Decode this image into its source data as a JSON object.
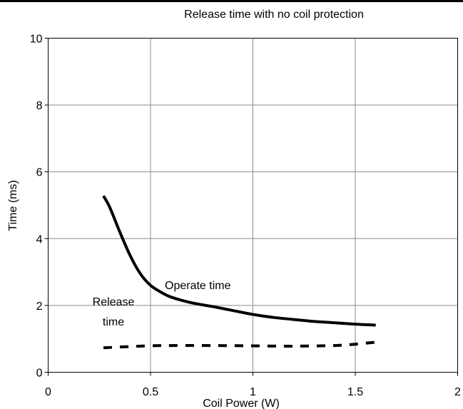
{
  "chart_data": {
    "type": "line",
    "title": "Release time with no coil protection",
    "xlabel": "Coil Power (W)",
    "ylabel": "Time (ms)",
    "xlim": [
      0,
      2
    ],
    "ylim": [
      0,
      10
    ],
    "xticks": [
      0,
      0.5,
      1,
      1.5,
      2
    ],
    "yticks": [
      0,
      2,
      4,
      6,
      8,
      10
    ],
    "xtick_labels": [
      "0",
      "0.5",
      "1",
      "1.5",
      "2"
    ],
    "ytick_labels": [
      "0",
      "2",
      "4",
      "6",
      "8",
      "10"
    ],
    "grid": true,
    "series": [
      {
        "name": "Operate time",
        "style": "solid",
        "color": "#000000",
        "x": [
          0.27,
          0.3,
          0.35,
          0.4,
          0.45,
          0.5,
          0.55,
          0.6,
          0.7,
          0.8,
          0.9,
          1.0,
          1.1,
          1.2,
          1.3,
          1.4,
          1.5,
          1.6
        ],
        "y": [
          5.28,
          4.95,
          4.2,
          3.5,
          2.95,
          2.6,
          2.4,
          2.25,
          2.08,
          1.97,
          1.85,
          1.73,
          1.64,
          1.58,
          1.52,
          1.48,
          1.44,
          1.41
        ]
      },
      {
        "name": "Release time",
        "style": "dashed",
        "color": "#000000",
        "x": [
          0.27,
          0.4,
          0.5,
          0.6,
          0.8,
          1.0,
          1.2,
          1.4,
          1.5,
          1.6
        ],
        "y": [
          0.73,
          0.77,
          0.79,
          0.8,
          0.8,
          0.79,
          0.78,
          0.8,
          0.84,
          0.9
        ]
      }
    ],
    "annotations": [
      {
        "id": "operate",
        "text": "Operate time"
      },
      {
        "id": "release_line1",
        "text": "Release"
      },
      {
        "id": "release_line2",
        "text": "time"
      }
    ]
  }
}
